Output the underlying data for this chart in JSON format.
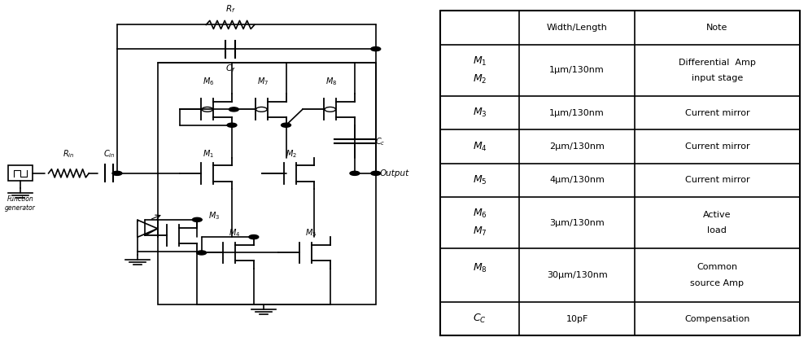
{
  "table_headers": [
    "",
    "Width/Length",
    "Note"
  ],
  "table_rows": [
    [
      "M1M2",
      "1μm/130nm",
      "Differential Amp\ninput stage"
    ],
    [
      "M3",
      "1μm/130nm",
      "Current mirror"
    ],
    [
      "M4",
      "2μm/130nm",
      "Current mirror"
    ],
    [
      "M5",
      "4μm/130nm",
      "Current mirror"
    ],
    [
      "M6M7",
      "3μm/130nm",
      "Active\nload"
    ],
    [
      "M8",
      "30μm/130nm",
      "Common\nsource Amp"
    ],
    [
      "CC",
      "10pF",
      "Compensation"
    ]
  ],
  "bg_color": "#ffffff"
}
